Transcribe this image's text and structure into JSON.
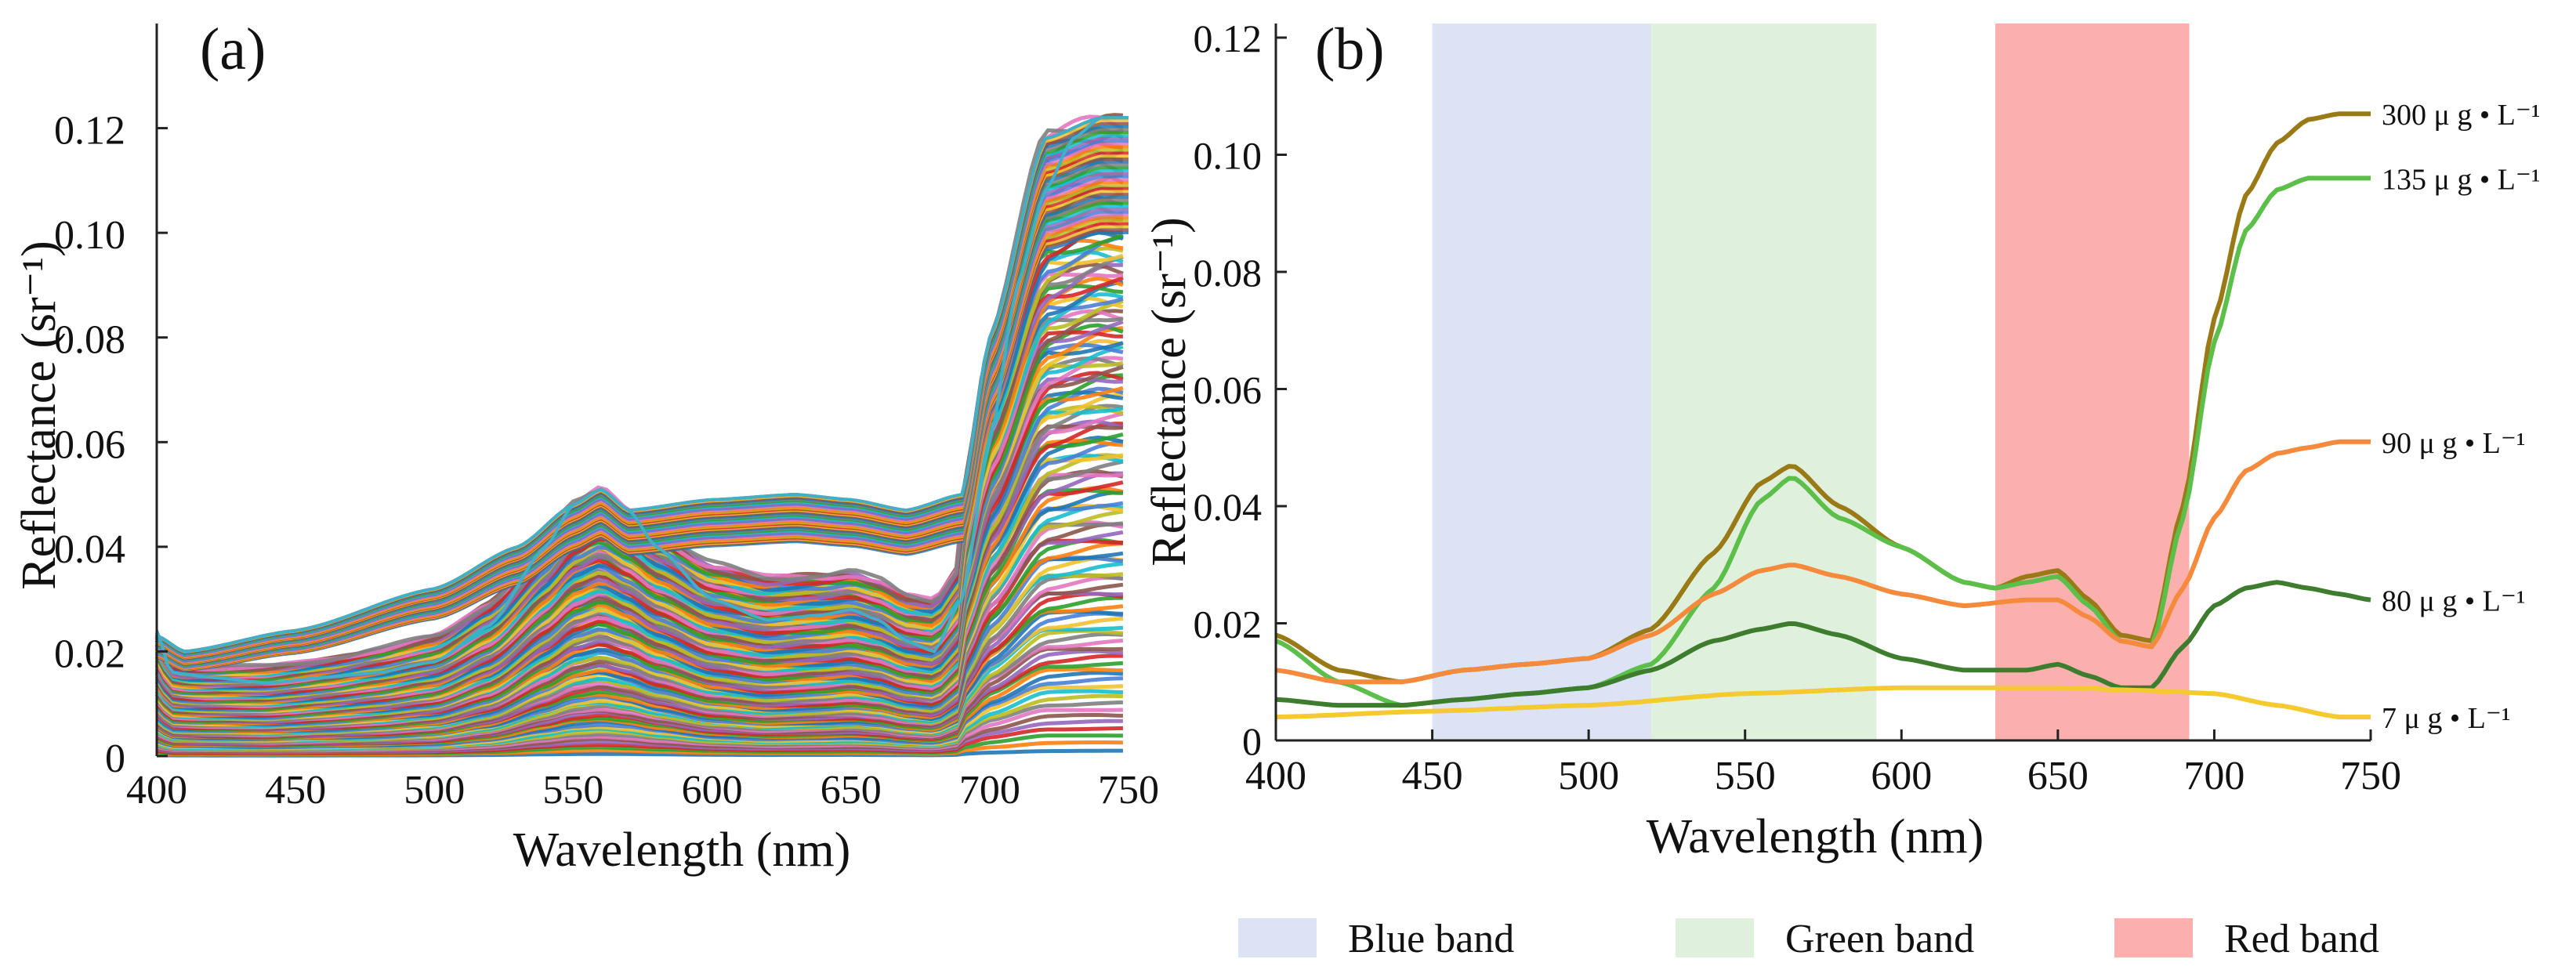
{
  "colors": {
    "blue_band": "#dbe3f5",
    "green_band": "#dff0dc",
    "red_band": "#fcb0ae",
    "axis": "#222222",
    "outline_a": "#3fb0c8",
    "c300": "#9a7a16",
    "c135": "#5cbf4a",
    "c90": "#f58a3c",
    "c80": "#3e7d2e",
    "c7": "#f5c930",
    "mesh_palette": [
      "#1f77b4",
      "#ff7f0e",
      "#2ca02c",
      "#d62728",
      "#9467bd",
      "#8c564b",
      "#e377c2",
      "#7f7f7f",
      "#bcbd22",
      "#17becf",
      "#f2c12e",
      "#4a7fd6"
    ]
  },
  "chart_data": [
    {
      "panel": "(a)",
      "type": "line",
      "title": "",
      "xlabel": "Wavelength (nm)",
      "ylabel": "Reflectance (sr⁻¹)",
      "xlim": [
        400,
        750
      ],
      "ylim": [
        0,
        0.14
      ],
      "xticks": [
        400,
        450,
        500,
        550,
        600,
        650,
        700,
        750
      ],
      "xtick_labels": [
        "400",
        "450",
        "500",
        "550",
        "600",
        "650",
        "700",
        "750"
      ],
      "yticks": [
        0,
        0.02,
        0.04,
        0.06,
        0.08,
        0.1,
        0.12
      ],
      "ytick_labels": [
        "0",
        "0.02",
        "0.04",
        "0.06",
        "0.08",
        "0.10",
        "0.12"
      ],
      "description_series": "many overlapping simulated reflectance spectra",
      "envelope_upper": {
        "x": [
          400,
          410,
          450,
          500,
          530,
          550,
          560,
          570,
          600,
          630,
          650,
          670,
          690,
          700,
          720,
          740,
          750
        ],
        "y": [
          0.023,
          0.02,
          0.024,
          0.032,
          0.04,
          0.048,
          0.051,
          0.047,
          0.049,
          0.05,
          0.049,
          0.047,
          0.05,
          0.08,
          0.118,
          0.122,
          0.122
        ]
      },
      "highlighted_outline": {
        "x": [
          400,
          405,
          420,
          440,
          460,
          480,
          500,
          520,
          540,
          550,
          560,
          570,
          580,
          600,
          620,
          640,
          650,
          660,
          670,
          680,
          690,
          700,
          710,
          720,
          730,
          740,
          750
        ],
        "y": [
          0.024,
          0.016,
          0.015,
          0.014,
          0.015,
          0.016,
          0.018,
          0.025,
          0.04,
          0.048,
          0.051,
          0.047,
          0.04,
          0.03,
          0.026,
          0.027,
          0.028,
          0.026,
          0.022,
          0.02,
          0.03,
          0.06,
          0.09,
          0.108,
          0.118,
          0.122,
          0.122
        ]
      }
    },
    {
      "panel": "(b)",
      "type": "line",
      "title": "",
      "xlabel": "Wavelength (nm)",
      "ylabel": "Reflectance (sr⁻¹)",
      "xlim": [
        400,
        750
      ],
      "ylim": [
        0,
        0.12
      ],
      "xticks": [
        400,
        450,
        500,
        550,
        600,
        650,
        700,
        750
      ],
      "xtick_labels": [
        "400",
        "450",
        "500",
        "550",
        "600",
        "650",
        "700",
        "750"
      ],
      "yticks": [
        0,
        0.02,
        0.04,
        0.06,
        0.08,
        0.1,
        0.12
      ],
      "ytick_labels": [
        "0",
        "0.02",
        "0.04",
        "0.06",
        "0.08",
        "0.10",
        "0.12"
      ],
      "bands": [
        {
          "name": "Blue band",
          "x0": 450,
          "x1": 520
        },
        {
          "name": "Green band",
          "x0": 520,
          "x1": 592
        },
        {
          "name": "Red band",
          "x0": 630,
          "x1": 692
        }
      ],
      "series": [
        {
          "name": "300 μ g • L⁻¹",
          "key": "c300",
          "x": [
            400,
            420,
            440,
            460,
            480,
            500,
            520,
            540,
            555,
            565,
            580,
            600,
            620,
            630,
            640,
            650,
            660,
            670,
            680,
            690,
            700,
            710,
            720,
            730,
            740,
            750
          ],
          "y": [
            0.018,
            0.012,
            0.01,
            0.012,
            0.013,
            0.014,
            0.019,
            0.032,
            0.044,
            0.047,
            0.04,
            0.033,
            0.027,
            0.026,
            0.028,
            0.029,
            0.024,
            0.018,
            0.017,
            0.04,
            0.072,
            0.093,
            0.102,
            0.106,
            0.107,
            0.107
          ]
        },
        {
          "name": "135 μ g • L⁻¹",
          "key": "c135",
          "x": [
            400,
            420,
            440,
            460,
            480,
            500,
            520,
            540,
            555,
            565,
            580,
            600,
            620,
            630,
            640,
            650,
            660,
            670,
            680,
            690,
            700,
            710,
            720,
            730,
            740,
            750
          ],
          "y": [
            0.017,
            0.01,
            0.006,
            0.007,
            0.008,
            0.009,
            0.013,
            0.026,
            0.041,
            0.045,
            0.038,
            0.033,
            0.027,
            0.026,
            0.027,
            0.028,
            0.023,
            0.017,
            0.016,
            0.038,
            0.068,
            0.087,
            0.094,
            0.096,
            0.096,
            0.096
          ]
        },
        {
          "name": "90 μ g • L⁻¹",
          "key": "c90",
          "x": [
            400,
            420,
            440,
            460,
            480,
            500,
            520,
            540,
            555,
            565,
            580,
            600,
            620,
            640,
            650,
            660,
            670,
            680,
            690,
            700,
            710,
            720,
            730,
            740,
            750
          ],
          "y": [
            0.012,
            0.01,
            0.01,
            0.012,
            0.013,
            0.014,
            0.018,
            0.025,
            0.029,
            0.03,
            0.028,
            0.025,
            0.023,
            0.024,
            0.024,
            0.021,
            0.017,
            0.016,
            0.026,
            0.038,
            0.046,
            0.049,
            0.05,
            0.051,
            0.051
          ]
        },
        {
          "name": "80 μ g • L⁻¹",
          "key": "c80",
          "x": [
            400,
            420,
            440,
            460,
            480,
            500,
            520,
            540,
            555,
            565,
            580,
            600,
            620,
            640,
            650,
            660,
            670,
            680,
            690,
            700,
            710,
            720,
            730,
            740,
            750
          ],
          "y": [
            0.007,
            0.006,
            0.006,
            0.007,
            0.008,
            0.009,
            0.012,
            0.017,
            0.019,
            0.02,
            0.018,
            0.014,
            0.012,
            0.012,
            0.013,
            0.011,
            0.009,
            0.009,
            0.016,
            0.023,
            0.026,
            0.027,
            0.026,
            0.025,
            0.024
          ]
        },
        {
          "name": "7 μ g • L⁻¹",
          "key": "c7",
          "x": [
            400,
            450,
            500,
            550,
            600,
            650,
            680,
            700,
            720,
            740,
            750
          ],
          "y": [
            0.004,
            0.005,
            0.006,
            0.008,
            0.009,
            0.009,
            0.0085,
            0.008,
            0.006,
            0.004,
            0.004
          ]
        }
      ]
    }
  ],
  "legend": [
    {
      "label": "Blue band",
      "key": "blue_band"
    },
    {
      "label": "Green band",
      "key": "green_band"
    },
    {
      "label": "Red band",
      "key": "red_band"
    }
  ]
}
